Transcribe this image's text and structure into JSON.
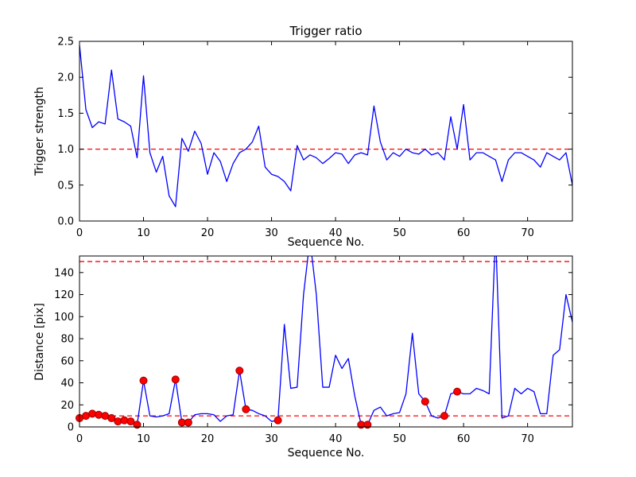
{
  "colors": {
    "line": "#0000ff",
    "threshold": "#ff0000",
    "marker": "#ff0000",
    "marker_edge": "#990000",
    "axis": "#000000",
    "background": "#ffffff"
  },
  "chart_data": [
    {
      "type": "line",
      "title": "Trigger ratio",
      "xlabel": "Sequence No.",
      "ylabel": "Trigger strength",
      "xlim": [
        0,
        77
      ],
      "ylim": [
        0.0,
        2.5
      ],
      "grid": false,
      "legend": null,
      "xticks": [
        0,
        10,
        20,
        30,
        40,
        50,
        60,
        70
      ],
      "xtick_labels": [
        "0",
        "10",
        "20",
        "30",
        "40",
        "50",
        "60",
        "70"
      ],
      "yticks": [
        0.0,
        0.5,
        1.0,
        1.5,
        2.0,
        2.5
      ],
      "ytick_labels": [
        "0.0",
        "0.5",
        "1.0",
        "1.5",
        "2.0",
        "2.5"
      ],
      "threshold_lines": [
        1.0
      ],
      "y": [
        2.45,
        1.55,
        1.3,
        1.38,
        1.35,
        2.1,
        1.42,
        1.38,
        1.32,
        0.88,
        2.02,
        0.95,
        0.68,
        0.9,
        0.35,
        0.2,
        1.15,
        0.97,
        1.25,
        1.08,
        0.65,
        0.95,
        0.83,
        0.55,
        0.8,
        0.95,
        1.0,
        1.1,
        1.32,
        0.75,
        0.65,
        0.62,
        0.55,
        0.42,
        1.05,
        0.85,
        0.92,
        0.88,
        0.8,
        0.87,
        0.95,
        0.93,
        0.8,
        0.92,
        0.95,
        0.92,
        1.6,
        1.1,
        0.85,
        0.95,
        0.9,
        1.0,
        0.95,
        0.93,
        1.0,
        0.92,
        0.95,
        0.85,
        1.45,
        1.0,
        1.62,
        0.85,
        0.95,
        0.95,
        0.9,
        0.85,
        0.55,
        0.85,
        0.95,
        0.95,
        0.9,
        0.85,
        0.75,
        0.95,
        0.9,
        0.85,
        0.95,
        0.5
      ]
    },
    {
      "type": "line",
      "title": "",
      "xlabel": "Sequence No.",
      "ylabel": "Distance [pix]",
      "xlim": [
        0,
        77
      ],
      "ylim": [
        0,
        155
      ],
      "grid": false,
      "legend": null,
      "xticks": [
        0,
        10,
        20,
        30,
        40,
        50,
        60,
        70
      ],
      "xtick_labels": [
        "0",
        "10",
        "20",
        "30",
        "40",
        "50",
        "60",
        "70"
      ],
      "yticks": [
        0,
        20,
        40,
        60,
        80,
        100,
        120,
        140
      ],
      "ytick_labels": [
        "0",
        "20",
        "40",
        "60",
        "80",
        "100",
        "120",
        "140"
      ],
      "threshold_lines": [
        10,
        150
      ],
      "y": [
        8,
        10,
        12,
        11,
        10,
        8,
        5,
        6,
        5,
        2,
        42,
        10,
        9,
        10,
        12,
        43,
        4,
        4,
        11,
        12,
        12,
        11,
        5,
        10,
        11,
        51,
        16,
        15,
        12,
        10,
        5,
        6,
        93,
        35,
        36,
        120,
        170,
        120,
        36,
        36,
        65,
        53,
        62,
        28,
        2,
        2,
        15,
        18,
        10,
        12,
        13,
        30,
        85,
        30,
        23,
        10,
        8,
        10,
        30,
        32,
        30,
        30,
        35,
        33,
        30,
        175,
        8,
        10,
        35,
        30,
        35,
        32,
        12,
        12,
        65,
        70,
        120,
        95
      ],
      "markers": {
        "x": [
          0,
          1,
          2,
          3,
          4,
          5,
          6,
          7,
          8,
          9,
          10,
          15,
          16,
          17,
          25,
          26,
          31,
          44,
          45,
          54,
          57,
          59
        ],
        "y": [
          8,
          10,
          12,
          11,
          10,
          8,
          5,
          6,
          5,
          2,
          42,
          43,
          4,
          4,
          51,
          16,
          6,
          2,
          2,
          23,
          10,
          32
        ]
      }
    }
  ]
}
